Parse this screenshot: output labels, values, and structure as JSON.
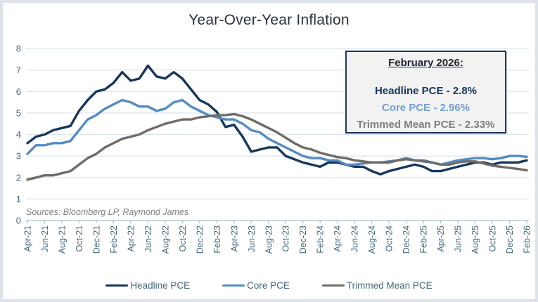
{
  "title": "Year-Over-Year Inflation",
  "source_note": "Sources: Bloomberg LP, Raymond James",
  "colors": {
    "headline": "#17365D",
    "core": "#548BC5",
    "core_text": "#6FA0D8",
    "trimmed": "#6E6C66",
    "trimmed_text": "#7F7F7F",
    "axis_text": "#44697D",
    "grid_line": "#DCE5EB",
    "axis_line": "#A9BCC9",
    "box_border": "#1F3864",
    "box_bg": "#F2F2F2",
    "frame_border": "#DDE3E9",
    "title_text": "#2B323C",
    "source_text": "#7F7F7F",
    "heading_text": "#1A2433"
  },
  "annotation": {
    "heading": "February 2026:",
    "lines": [
      {
        "text": "Headline PCE - 2.8%",
        "color": "#17365D"
      },
      {
        "text": "Core PCE - 2.96%",
        "color": "#6FA0D8"
      },
      {
        "text": "Trimmed Mean PCE - 2.33%",
        "color": "#7F7F7F"
      }
    ]
  },
  "chart_data": {
    "type": "line",
    "title": "Year-Over-Year Inflation",
    "xlabel": "",
    "ylabel": "",
    "ylim": [
      0,
      8
    ],
    "ytick_step": 1,
    "grid": true,
    "legend_position": "bottom",
    "xtick_every": 2,
    "x_labels": [
      "Apr-21",
      "Jun-21",
      "Aug-21",
      "Oct-21",
      "Dec-21",
      "Feb-22",
      "Apr-22",
      "Jun-22",
      "Aug-22",
      "Oct-22",
      "Dec-22",
      "Feb-23",
      "Apr-23",
      "Jun-23",
      "Aug-23",
      "Oct-23",
      "Dec-23",
      "Feb-24",
      "Apr-24",
      "Jun-24",
      "Aug-24",
      "Oct-24",
      "Dec-24",
      "Feb-25",
      "Apr-25",
      "Jun-25",
      "Aug-25",
      "Oct-25",
      "Dec-25",
      "Feb-26"
    ],
    "series": [
      {
        "name": "Headline PCE",
        "color": "#17365D",
        "final_value_label": "2.8%",
        "values": [
          3.6,
          3.9,
          4.0,
          4.2,
          4.3,
          4.4,
          5.1,
          5.6,
          6.0,
          6.1,
          6.4,
          6.9,
          6.5,
          6.6,
          7.2,
          6.7,
          6.6,
          6.9,
          6.6,
          6.1,
          5.6,
          5.4,
          5.05,
          4.35,
          4.45,
          3.9,
          3.2,
          3.3,
          3.4,
          3.4,
          3.0,
          2.85,
          2.7,
          2.6,
          2.5,
          2.7,
          2.7,
          2.6,
          2.5,
          2.5,
          2.3,
          2.15,
          2.3,
          2.4,
          2.5,
          2.6,
          2.5,
          2.3,
          2.3,
          2.4,
          2.5,
          2.6,
          2.7,
          2.7,
          2.6,
          2.7,
          2.7,
          2.7,
          2.8
        ]
      },
      {
        "name": "Core PCE",
        "color": "#548BC5",
        "final_value_label": "2.96%",
        "values": [
          3.1,
          3.5,
          3.5,
          3.6,
          3.6,
          3.7,
          4.2,
          4.7,
          4.9,
          5.2,
          5.4,
          5.6,
          5.5,
          5.3,
          5.3,
          5.1,
          5.2,
          5.5,
          5.6,
          5.3,
          5.1,
          4.9,
          4.8,
          4.7,
          4.7,
          4.5,
          4.2,
          4.1,
          3.8,
          3.6,
          3.4,
          3.2,
          3.0,
          2.9,
          2.9,
          2.8,
          2.8,
          2.6,
          2.6,
          2.65,
          2.7,
          2.7,
          2.75,
          2.8,
          2.9,
          2.8,
          2.8,
          2.7,
          2.6,
          2.7,
          2.8,
          2.85,
          2.9,
          2.9,
          2.85,
          2.9,
          3.0,
          3.0,
          2.96
        ]
      },
      {
        "name": "Trimmed Mean PCE",
        "color": "#6E6C66",
        "final_value_label": "2.33%",
        "values": [
          1.9,
          2.0,
          2.1,
          2.1,
          2.2,
          2.3,
          2.6,
          2.9,
          3.1,
          3.4,
          3.6,
          3.8,
          3.9,
          4.0,
          4.2,
          4.35,
          4.5,
          4.6,
          4.7,
          4.7,
          4.8,
          4.85,
          4.9,
          4.9,
          4.95,
          4.85,
          4.7,
          4.5,
          4.3,
          4.1,
          3.85,
          3.6,
          3.4,
          3.3,
          3.15,
          3.05,
          2.95,
          2.9,
          2.8,
          2.75,
          2.7,
          2.7,
          2.7,
          2.8,
          2.85,
          2.8,
          2.75,
          2.7,
          2.6,
          2.6,
          2.7,
          2.75,
          2.75,
          2.65,
          2.55,
          2.5,
          2.45,
          2.4,
          2.33
        ]
      }
    ]
  },
  "legend": {
    "items": [
      "Headline PCE",
      "Core PCE",
      "Trimmed Mean PCE"
    ]
  }
}
